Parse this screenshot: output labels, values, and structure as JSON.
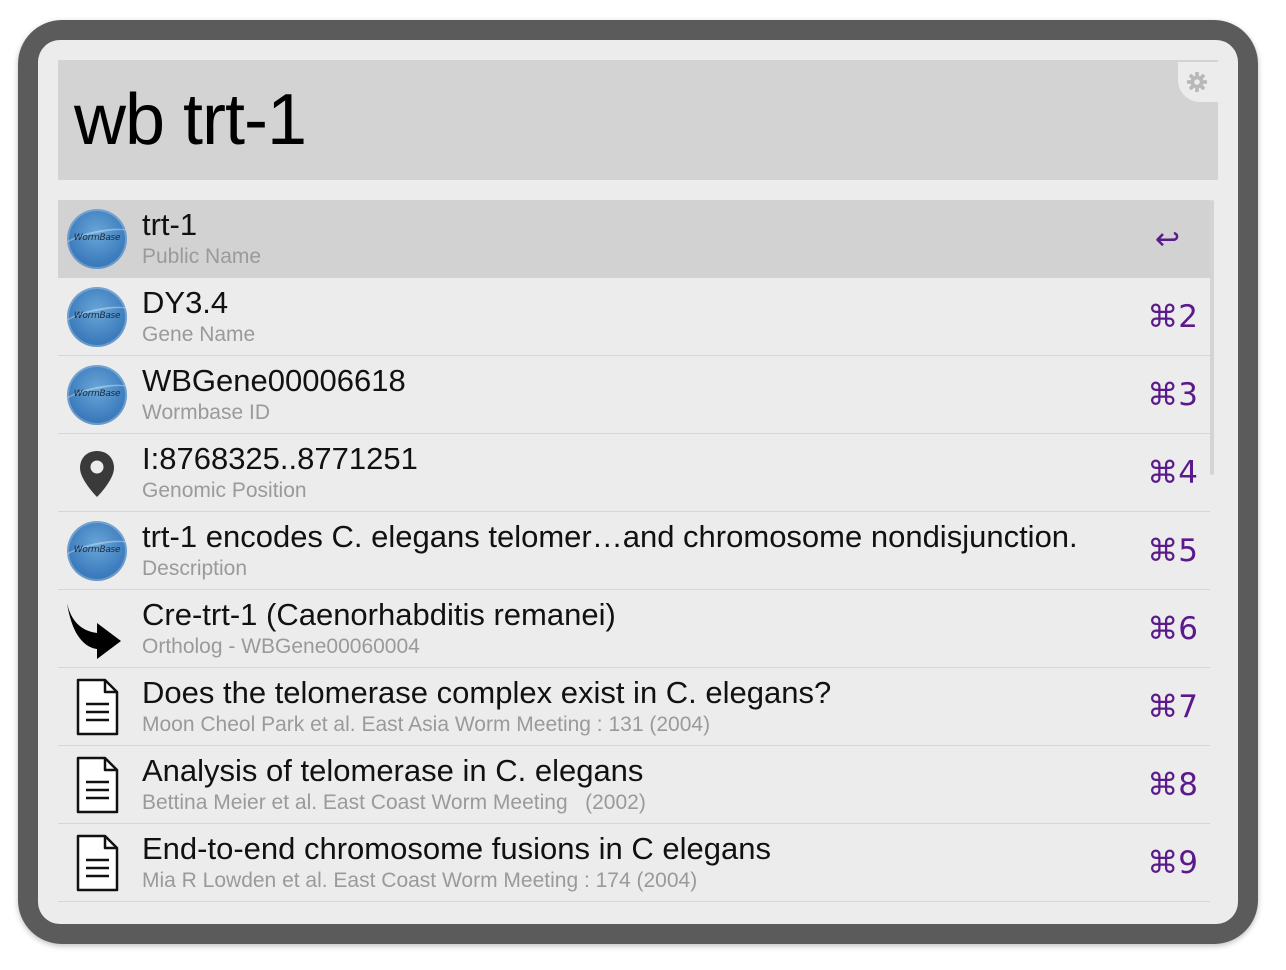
{
  "search": {
    "query": "wb trt-1"
  },
  "results": [
    {
      "icon": "wormbase-logo-icon",
      "logo_text": "WormBase",
      "title": "trt-1",
      "subtitle": "Public Name",
      "shortcut": "↩"
    },
    {
      "icon": "wormbase-logo-icon",
      "logo_text": "WormBase",
      "title": "DY3.4",
      "subtitle": "Gene Name",
      "shortcut": "⌘2"
    },
    {
      "icon": "wormbase-logo-icon",
      "logo_text": "WormBase",
      "title": "WBGene00006618",
      "subtitle": "Wormbase ID",
      "shortcut": "⌘3"
    },
    {
      "icon": "map-pin-icon",
      "title": "I:8768325..8771251",
      "subtitle": "Genomic Position",
      "shortcut": "⌘4"
    },
    {
      "icon": "wormbase-logo-icon",
      "logo_text": "WormBase",
      "title": "trt-1 encodes C. elegans telomer…and chromosome nondisjunction.",
      "subtitle": "Description",
      "shortcut": "⌘5"
    },
    {
      "icon": "curved-arrow-icon",
      "title": "Cre-trt-1 (Caenorhabditis remanei)",
      "subtitle": "Ortholog - WBGene00060004",
      "shortcut": "⌘6"
    },
    {
      "icon": "document-icon",
      "title": "Does the telomerase complex exist in C. elegans?",
      "subtitle": "Moon Cheol Park et al. East Asia Worm Meeting : 131 (2004)",
      "shortcut": "⌘7"
    },
    {
      "icon": "document-icon",
      "title": "Analysis of telomerase in C. elegans",
      "subtitle": "Bettina Meier et al. East Coast Worm Meeting   (2002)",
      "shortcut": "⌘8"
    },
    {
      "icon": "document-icon",
      "title": "End-to-end chromosome fusions in C elegans",
      "subtitle": "Mia R Lowden et al. East Coast Worm Meeting : 174 (2004)",
      "shortcut": "⌘9"
    }
  ],
  "colors": {
    "shortcut": "#5b1a8c",
    "selected_row": "#d2d2d2",
    "search_bg": "#d3d3d3",
    "frame": "#5b5b5b"
  }
}
